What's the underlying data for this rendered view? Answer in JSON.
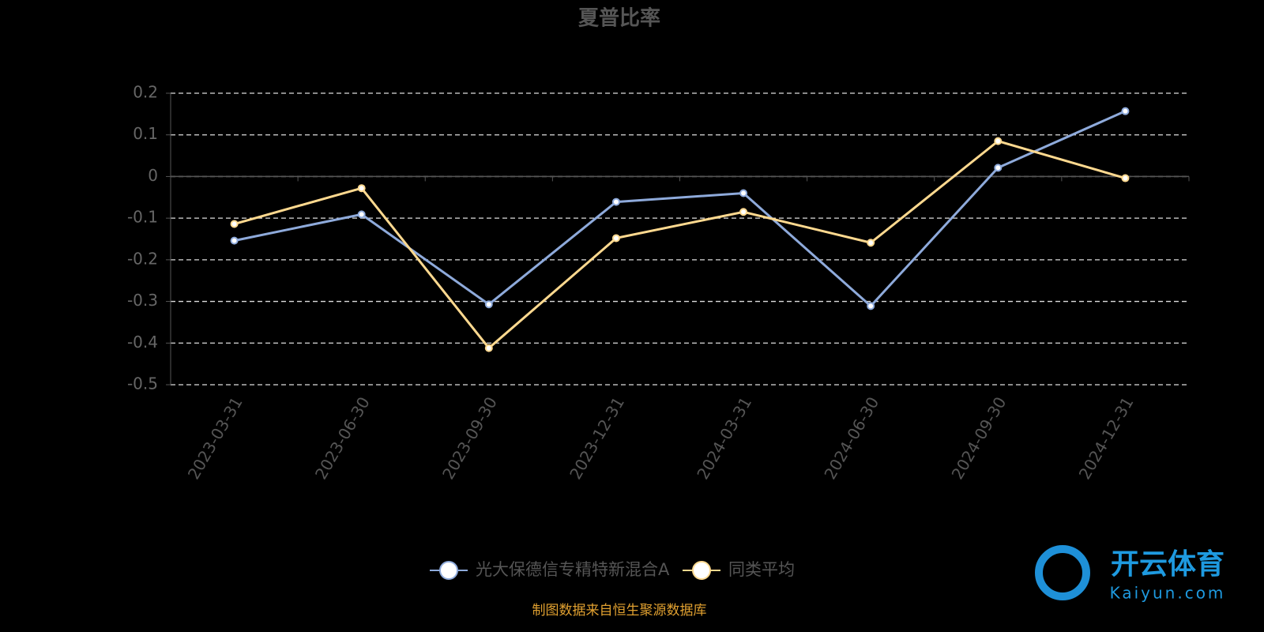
{
  "chart_data": {
    "type": "line",
    "title": "夏普比率",
    "categories": [
      "2023-03-31",
      "2023-06-30",
      "2023-09-30",
      "2023-12-31",
      "2024-03-31",
      "2024-06-30",
      "2024-09-30",
      "2024-12-31"
    ],
    "series": [
      {
        "name": "光大保德信专精特新混合A",
        "color": "#8eaadb",
        "values": [
          -0.154,
          -0.091,
          -0.307,
          -0.061,
          -0.04,
          -0.311,
          0.021,
          0.157
        ]
      },
      {
        "name": "同类平均",
        "color": "#ffd98f",
        "values": [
          -0.114,
          -0.028,
          -0.412,
          -0.148,
          -0.085,
          -0.159,
          0.085,
          -0.004
        ]
      }
    ],
    "ylim": [
      -0.5,
      0.2
    ],
    "yticks": [
      0.2,
      0.1,
      0,
      -0.1,
      -0.2,
      -0.3,
      -0.4,
      -0.5
    ],
    "grid": true,
    "legend": "bottom",
    "source": "制图数据来自恒生聚源数据库"
  },
  "watermark": {
    "brand": "开云体育",
    "url": "Kaiyun.com"
  }
}
